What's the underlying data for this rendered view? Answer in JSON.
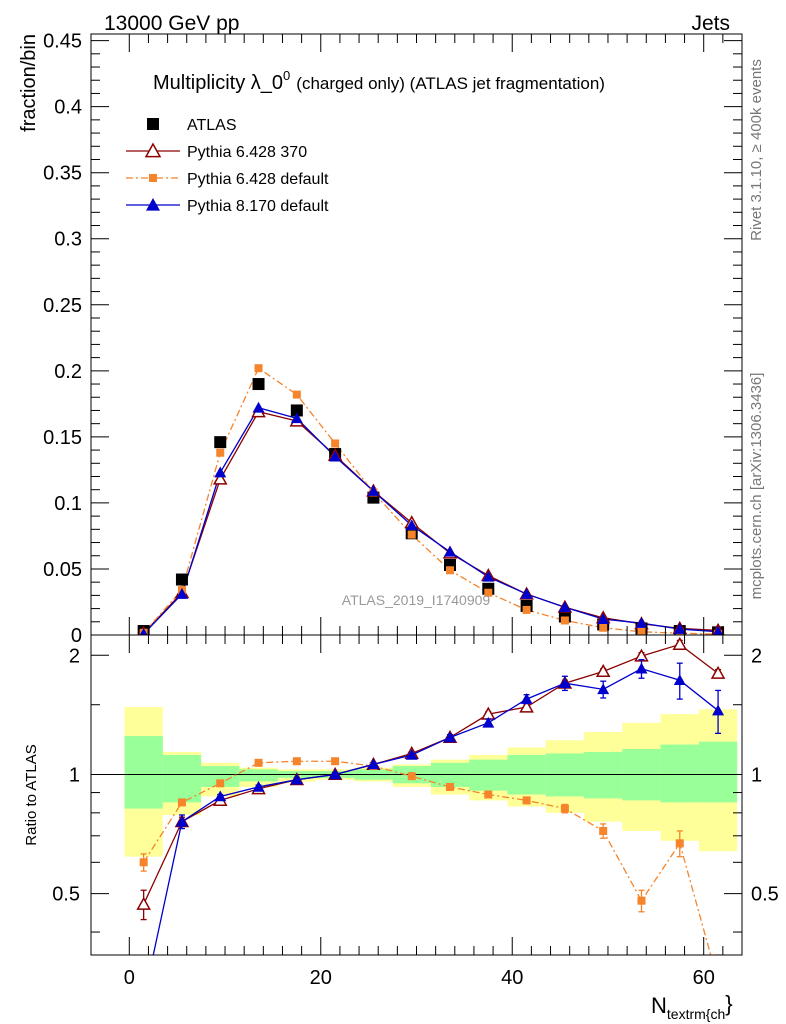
{
  "header": {
    "left": "13000 GeV pp",
    "right": "Jets"
  },
  "side": {
    "rivet": "Rivet 3.1.10, ≥ 400k events",
    "mcplots": "mcplots.cern.ch [arXiv:1306.3436]"
  },
  "title_main": "Multiplicity λ_0",
  "title_sup": "0",
  "title_rest": "(charged only) (ATLAS jet fragmentation)",
  "watermark": "ATLAS_2019_I1740909",
  "xlabel_main": "N",
  "xlabel_sub": "textrm{ch",
  "xlabel_tail": "}",
  "chart_data": [
    {
      "type": "scatter",
      "panel": "main",
      "ylabel": "fraction/bin",
      "xlim": [
        -4,
        64
      ],
      "ylim": [
        0,
        0.455
      ],
      "yticks": [
        "0",
        "0.05",
        "0.1",
        "0.15",
        "0.2",
        "0.25",
        "0.3",
        "0.35",
        "0.4",
        "0.45"
      ],
      "x": [
        1.5,
        5.5,
        9.5,
        13.5,
        17.5,
        21.5,
        25.5,
        29.5,
        33.5,
        37.5,
        41.5,
        45.5,
        49.5,
        53.5,
        57.5,
        61.5
      ],
      "legend_position": "top-left",
      "series": [
        {
          "name": "ATLAS",
          "color": "#000000",
          "marker": "square",
          "values": [
            0.003,
            0.042,
            0.146,
            0.19,
            0.17,
            0.137,
            0.104,
            0.077,
            0.053,
            0.035,
            0.022,
            0.014,
            0.008,
            0.005,
            0.003,
            0.002
          ]
        },
        {
          "name": "Pythia 6.428 370",
          "color": "#8b0000",
          "marker": "open-triangle",
          "values": [
            0.0013,
            0.032,
            0.118,
            0.169,
            0.162,
            0.136,
            0.109,
            0.085,
            0.062,
            0.045,
            0.031,
            0.021,
            0.013,
            0.0085,
            0.005,
            0.0035
          ]
        },
        {
          "name": "Pythia 6.428 default",
          "color": "#f5842b",
          "marker": "small-square",
          "values": [
            0.0017,
            0.034,
            0.138,
            0.202,
            0.182,
            0.145,
            0.108,
            0.076,
            0.049,
            0.032,
            0.019,
            0.011,
            0.0055,
            0.0024,
            0.0014,
            0.0006
          ]
        },
        {
          "name": "Pythia 8.170 default",
          "color": "#0000cc",
          "marker": "triangle",
          "values": [
            0.0008,
            0.031,
            0.123,
            0.172,
            0.164,
            0.135,
            0.109,
            0.083,
            0.063,
            0.044,
            0.031,
            0.021,
            0.012,
            0.009,
            0.0045,
            0.0025
          ]
        }
      ]
    },
    {
      "type": "scatter",
      "panel": "ratio",
      "ylabel": "Ratio to ATLAS",
      "xlim": [
        -4,
        64
      ],
      "ylim": [
        0.35,
        2.25
      ],
      "yticks": [
        "0.5",
        "1",
        "2"
      ],
      "xticks": [
        "0",
        "20",
        "40",
        "60"
      ],
      "reference": 1,
      "x": [
        1.5,
        5.5,
        9.5,
        13.5,
        17.5,
        21.5,
        25.5,
        29.5,
        33.5,
        37.5,
        41.5,
        45.5,
        49.5,
        53.5,
        57.5,
        61.5
      ],
      "bins": [
        [
          -0.5,
          3.5
        ],
        [
          3.5,
          7.5
        ],
        [
          7.5,
          11.5
        ],
        [
          11.5,
          15.5
        ],
        [
          15.5,
          19.5
        ],
        [
          19.5,
          23.5
        ],
        [
          23.5,
          27.5
        ],
        [
          27.5,
          31.5
        ],
        [
          31.5,
          35.5
        ],
        [
          35.5,
          39.5
        ],
        [
          39.5,
          43.5
        ],
        [
          43.5,
          47.5
        ],
        [
          47.5,
          51.5
        ],
        [
          51.5,
          55.5
        ],
        [
          55.5,
          59.5
        ],
        [
          59.5,
          63.5
        ]
      ],
      "band_yellow": {
        "color": "#ffff99",
        "lo": [
          0.62,
          0.79,
          0.88,
          0.93,
          0.96,
          0.97,
          0.96,
          0.93,
          0.89,
          0.86,
          0.83,
          0.8,
          0.76,
          0.72,
          0.68,
          0.64
        ],
        "hi": [
          1.48,
          1.14,
          1.07,
          1.04,
          1.03,
          1.03,
          1.04,
          1.06,
          1.09,
          1.12,
          1.17,
          1.22,
          1.28,
          1.35,
          1.42,
          1.46
        ]
      },
      "band_green": {
        "color": "#99ff99",
        "lo": [
          0.82,
          0.85,
          0.93,
          0.96,
          0.98,
          0.98,
          0.97,
          0.95,
          0.93,
          0.91,
          0.89,
          0.88,
          0.87,
          0.86,
          0.85,
          0.85
        ],
        "hi": [
          1.25,
          1.12,
          1.05,
          1.03,
          1.02,
          1.02,
          1.03,
          1.05,
          1.07,
          1.09,
          1.12,
          1.13,
          1.14,
          1.16,
          1.19,
          1.21
        ]
      },
      "series": [
        {
          "name": "Pythia 6.428 370",
          "color": "#8b0000",
          "marker": "open-triangle",
          "values": [
            0.47,
            0.76,
            0.86,
            0.92,
            0.97,
            1.0,
            1.06,
            1.13,
            1.24,
            1.42,
            1.48,
            1.7,
            1.82,
            1.99,
            2.13,
            1.8
          ],
          "err": [
            0.04,
            0.02,
            0.01,
            0.01,
            0.01,
            0.01,
            0.01,
            0.01,
            0.01,
            0.02,
            0.03,
            0.03,
            0.03,
            0.04,
            0.05,
            0.04
          ]
        },
        {
          "name": "Pythia 6.428 default",
          "color": "#f5842b",
          "marker": "small-square",
          "values": [
            0.6,
            0.85,
            0.95,
            1.07,
            1.08,
            1.08,
            1.05,
            0.99,
            0.93,
            0.89,
            0.86,
            0.82,
            0.72,
            0.48,
            0.67,
            0.3
          ],
          "err": [
            0.03,
            0.01,
            0.01,
            0.01,
            0.01,
            0.01,
            0.01,
            0.01,
            0.01,
            0.01,
            0.01,
            0.02,
            0.03,
            0.03,
            0.05,
            0.05
          ]
        },
        {
          "name": "Pythia 8.170 default",
          "color": "#0000cc",
          "marker": "triangle",
          "values": [
            0.27,
            0.76,
            0.88,
            0.93,
            0.97,
            1.0,
            1.06,
            1.12,
            1.24,
            1.35,
            1.55,
            1.7,
            1.64,
            1.85,
            1.73,
            1.45
          ],
          "err": [
            0.03,
            0.03,
            0.01,
            0.01,
            0.01,
            0.01,
            0.01,
            0.01,
            0.02,
            0.03,
            0.04,
            0.07,
            0.08,
            0.1,
            0.18,
            0.18
          ]
        }
      ]
    }
  ]
}
